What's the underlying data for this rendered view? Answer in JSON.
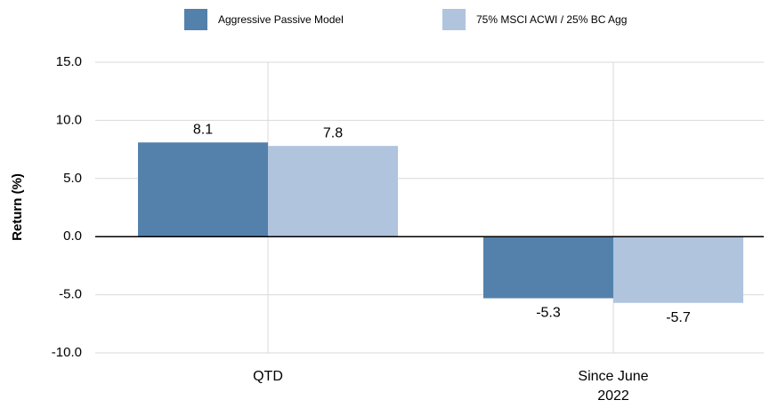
{
  "chart_data": {
    "type": "bar",
    "categories": [
      "QTD",
      "Since June 2022"
    ],
    "series": [
      {
        "name": "Aggressive Passive Model",
        "color": "#5381ac",
        "values": [
          8.1,
          -5.3
        ]
      },
      {
        "name": "75% MSCI ACWI / 25% BC Agg",
        "color": "#b0c4de",
        "values": [
          7.8,
          -5.7
        ]
      }
    ],
    "y_axis_label": "Return (%)",
    "ylim": [
      -10,
      15
    ],
    "yticks": [
      {
        "value": -10,
        "label": "-10.0"
      },
      {
        "value": -5,
        "label": "-5.0"
      },
      {
        "value": 0,
        "label": "0.0"
      },
      {
        "value": 5,
        "label": "5.0"
      },
      {
        "value": 10,
        "label": "10.0"
      },
      {
        "value": 15,
        "label": "15.0"
      }
    ],
    "grid": true,
    "legend": "top"
  }
}
